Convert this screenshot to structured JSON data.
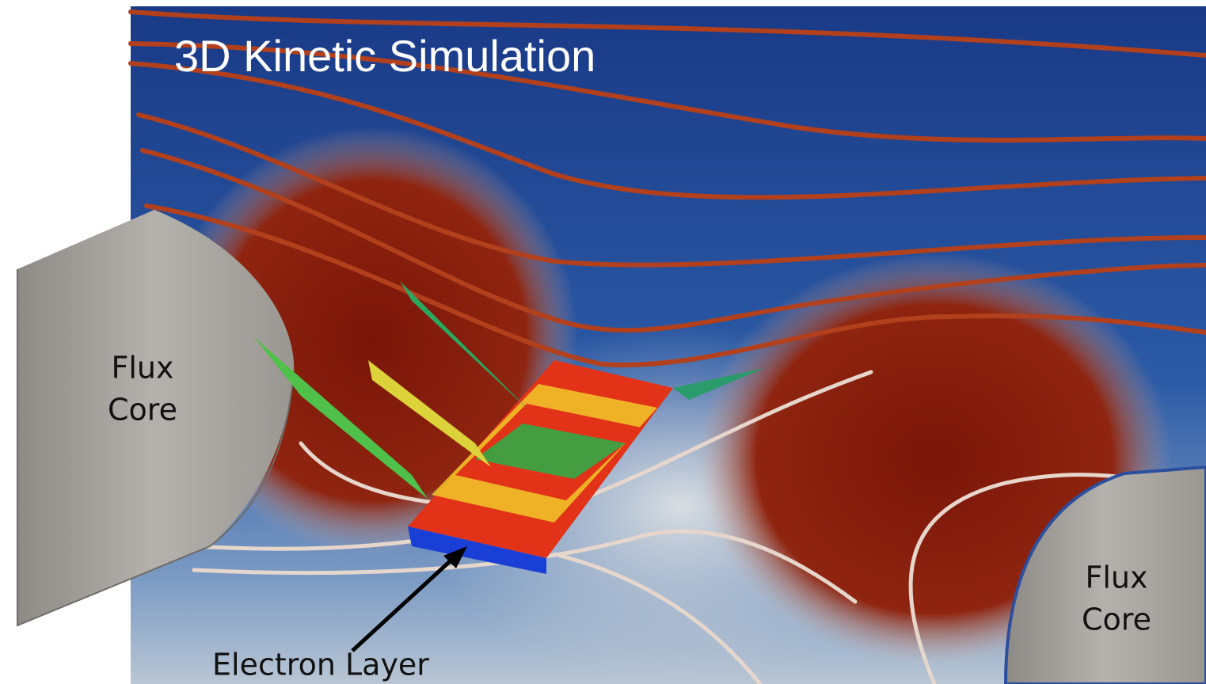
{
  "title": "3D Kinetic Simulation",
  "left_core": {
    "line1": "Flux",
    "line2": "Core"
  },
  "right_core": {
    "line1": "Flux",
    "line2": "Core"
  },
  "electron_layer": "Electron Layer"
}
